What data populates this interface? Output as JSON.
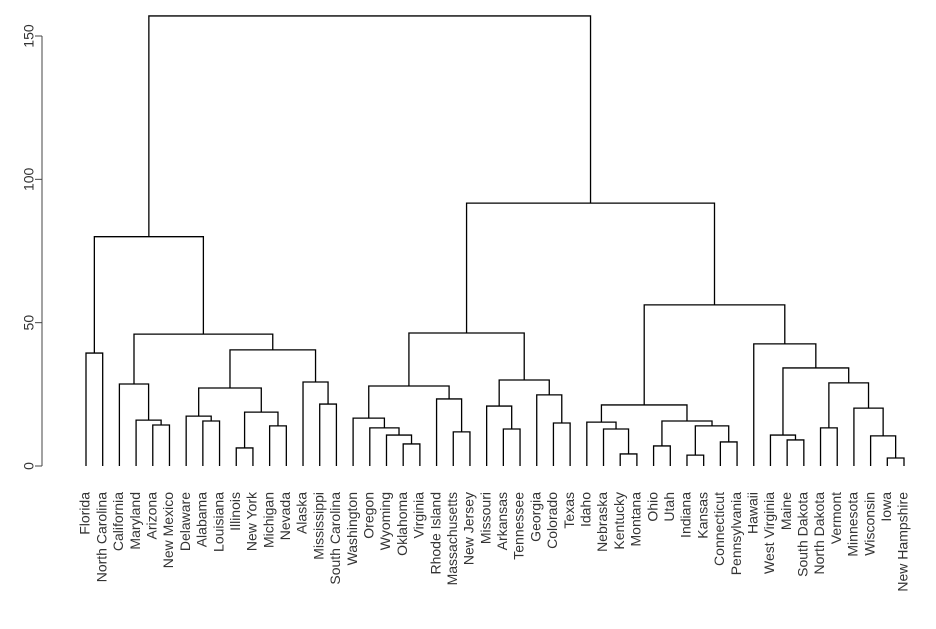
{
  "chart_data": {
    "type": "dendrogram",
    "color": "#000000",
    "ylim": [
      0,
      150
    ],
    "yticks": [
      0,
      50,
      100,
      150
    ],
    "tree": {
      "height": 157,
      "children": [
        {
          "height": 80,
          "children": [
            {
              "height": 39.4,
              "children": [
                "Florida",
                "North Carolina"
              ]
            },
            {
              "height": 46,
              "children": [
                {
                  "height": 28.6,
                  "children": [
                    "California",
                    {
                      "height": 16,
                      "children": [
                        "Maryland",
                        {
                          "height": 14.3,
                          "children": [
                            "Arizona",
                            "New Mexico"
                          ]
                        }
                      ]
                    }
                  ]
                },
                {
                  "height": 40.5,
                  "children": [
                    {
                      "height": 27.2,
                      "children": [
                        {
                          "height": 17.4,
                          "children": [
                            "Delaware",
                            {
                              "height": 15.7,
                              "children": [
                                "Alabama",
                                "Louisiana"
                              ]
                            }
                          ]
                        },
                        {
                          "height": 18.8,
                          "children": [
                            {
                              "height": 6.3,
                              "children": [
                                "Illinois",
                                "New York"
                              ]
                            },
                            {
                              "height": 14,
                              "children": [
                                "Michigan",
                                "Nevada"
                              ]
                            }
                          ]
                        }
                      ]
                    },
                    {
                      "height": 29.3,
                      "children": [
                        "Alaska",
                        {
                          "height": 21.6,
                          "children": [
                            "Mississippi",
                            "South Carolina"
                          ]
                        }
                      ]
                    }
                  ]
                }
              ]
            }
          ]
        },
        {
          "height": 91.7,
          "children": [
            {
              "height": 46.4,
              "children": [
                {
                  "height": 27.9,
                  "children": [
                    {
                      "height": 16.7,
                      "children": [
                        "Washington",
                        {
                          "height": 13.3,
                          "children": [
                            "Oregon",
                            {
                              "height": 10.8,
                              "children": [
                                "Wyoming",
                                {
                                  "height": 7.7,
                                  "children": [
                                    "Oklahoma",
                                    "Virginia"
                                  ]
                                }
                              ]
                            }
                          ]
                        }
                      ]
                    },
                    {
                      "height": 23.4,
                      "children": [
                        "Rhode Island",
                        {
                          "height": 11.9,
                          "children": [
                            "Massachusetts",
                            "New Jersey"
                          ]
                        }
                      ]
                    }
                  ]
                },
                {
                  "height": 30,
                  "children": [
                    {
                      "height": 20.9,
                      "children": [
                        "Missouri",
                        {
                          "height": 12.9,
                          "children": [
                            "Arkansas",
                            "Tennessee"
                          ]
                        }
                      ]
                    },
                    {
                      "height": 24.8,
                      "children": [
                        "Georgia",
                        {
                          "height": 15,
                          "children": [
                            "Colorado",
                            "Texas"
                          ]
                        }
                      ]
                    }
                  ]
                }
              ]
            },
            {
              "height": 56.2,
              "children": [
                {
                  "height": 21.3,
                  "children": [
                    {
                      "height": 15.3,
                      "children": [
                        "Idaho",
                        {
                          "height": 12.9,
                          "children": [
                            "Nebraska",
                            {
                              "height": 4.2,
                              "children": [
                                "Kentucky",
                                "Montana"
                              ]
                            }
                          ]
                        }
                      ]
                    },
                    {
                      "height": 15.7,
                      "children": [
                        {
                          "height": 7,
                          "children": [
                            "Ohio",
                            "Utah"
                          ]
                        },
                        {
                          "height": 14,
                          "children": [
                            {
                              "height": 3.8,
                              "children": [
                                "Indiana",
                                "Kansas"
                              ]
                            },
                            {
                              "height": 8.4,
                              "children": [
                                "Connecticut",
                                "Pennsylvania"
                              ]
                            }
                          ]
                        }
                      ]
                    }
                  ]
                },
                {
                  "height": 42.6,
                  "children": [
                    "Hawaii",
                    {
                      "height": 34.2,
                      "children": [
                        {
                          "height": 10.8,
                          "children": [
                            "West Virginia",
                            {
                              "height": 9.1,
                              "children": [
                                "Maine",
                                "South Dakota"
                              ]
                            }
                          ]
                        },
                        {
                          "height": 29,
                          "children": [
                            {
                              "height": 13.3,
                              "children": [
                                "North Dakota",
                                "Vermont"
                              ]
                            },
                            {
                              "height": 20.2,
                              "children": [
                                "Minnesota",
                                {
                                  "height": 10.5,
                                  "children": [
                                    "Wisconsin",
                                    {
                                      "height": 2.8,
                                      "children": [
                                        "Iowa",
                                        "New Hampshire"
                                      ]
                                    }
                                  ]
                                }
                              ]
                            }
                          ]
                        }
                      ]
                    }
                  ]
                }
              ]
            }
          ]
        }
      ]
    }
  }
}
